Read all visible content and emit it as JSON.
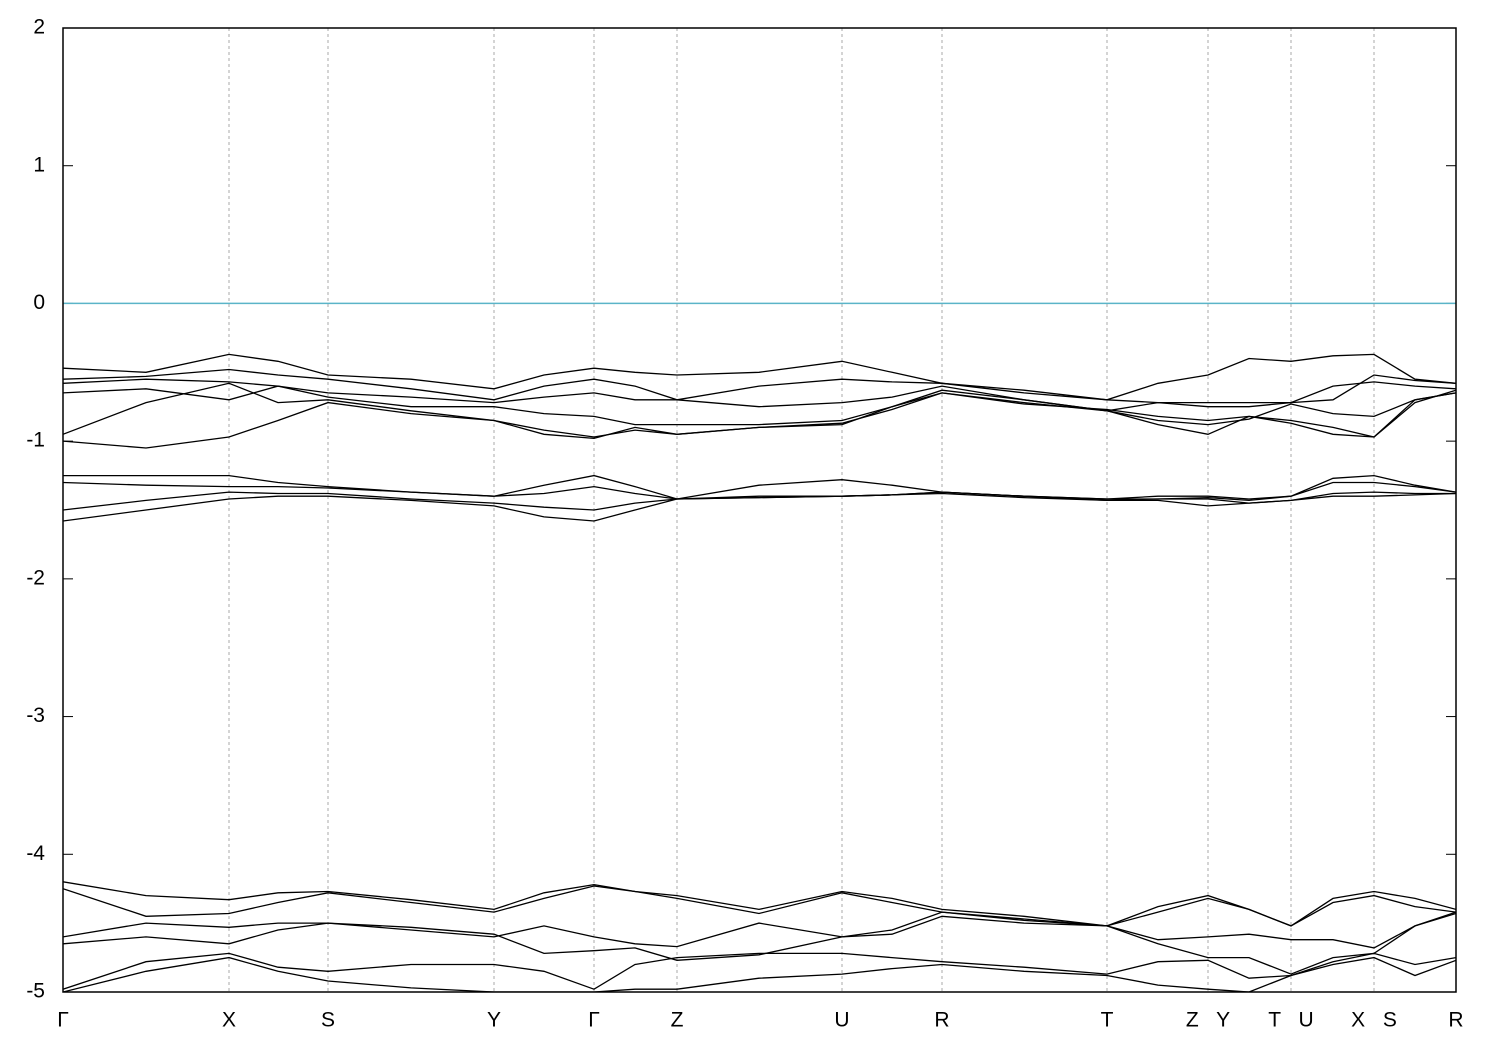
{
  "chart_data": {
    "type": "line",
    "x": [
      0,
      0.83,
      1.66,
      2.15,
      2.65,
      3.48,
      4.31,
      4.81,
      5.31,
      5.72,
      6.14,
      6.96,
      7.79,
      8.29,
      8.79,
      9.61,
      10.44,
      10.95,
      11.45,
      11.86,
      12.28,
      12.7,
      13.11,
      13.52,
      13.93
    ],
    "xlim": [
      0,
      13.93
    ],
    "xticks": [
      {
        "value": 0,
        "label": "Γ"
      },
      {
        "value": 1.66,
        "label": "X"
      },
      {
        "value": 2.65,
        "label": "S"
      },
      {
        "value": 4.31,
        "label": "Y"
      },
      {
        "value": 5.31,
        "label": "Γ"
      },
      {
        "value": 6.14,
        "label": "Z"
      },
      {
        "value": 7.79,
        "label": "U"
      },
      {
        "value": 8.79,
        "label": "R"
      },
      {
        "value": 10.44,
        "label": "T"
      },
      {
        "value": 11.45,
        "label": "Z Y"
      },
      {
        "value": 12.28,
        "label": "T U"
      },
      {
        "value": 13.11,
        "label": "X S"
      },
      {
        "value": 13.93,
        "label": "R"
      }
    ],
    "ylim": [
      -5,
      2
    ],
    "yticks": [
      -5,
      -4,
      -3,
      -2,
      -1,
      0,
      1,
      2
    ],
    "vertical_grid": true,
    "fermi_level": 0,
    "fermi_color": "#5ab4c8",
    "series": [
      {
        "color": "#000000",
        "values": [
          -0.47,
          -0.5,
          -0.37,
          -0.42,
          -0.52,
          -0.55,
          -0.62,
          -0.52,
          -0.47,
          -0.5,
          -0.52,
          -0.5,
          -0.42,
          -0.5,
          -0.58,
          -0.63,
          -0.7,
          -0.58,
          -0.52,
          -0.4,
          -0.42,
          -0.38,
          -0.37,
          -0.55,
          -0.58
        ]
      },
      {
        "color": "#000000",
        "values": [
          -0.55,
          -0.53,
          -0.48,
          -0.52,
          -0.55,
          -0.62,
          -0.7,
          -0.6,
          -0.55,
          -0.6,
          -0.7,
          -0.6,
          -0.55,
          -0.57,
          -0.58,
          -0.65,
          -0.7,
          -0.72,
          -0.72,
          -0.72,
          -0.72,
          -0.6,
          -0.57,
          -0.6,
          -0.62
        ]
      },
      {
        "color": "#000000",
        "values": [
          -0.58,
          -0.55,
          -0.57,
          -0.6,
          -0.65,
          -0.68,
          -0.72,
          -0.68,
          -0.65,
          -0.7,
          -0.7,
          -0.75,
          -0.72,
          -0.68,
          -0.6,
          -0.7,
          -0.78,
          -0.72,
          -0.75,
          -0.75,
          -0.72,
          -0.7,
          -0.52,
          -0.56,
          -0.58
        ]
      },
      {
        "color": "#000000",
        "values": [
          -0.65,
          -0.62,
          -0.7,
          -0.6,
          -0.68,
          -0.75,
          -0.75,
          -0.8,
          -0.82,
          -0.88,
          -0.88,
          -0.88,
          -0.85,
          -0.75,
          -0.65,
          -0.72,
          -0.78,
          -0.85,
          -0.88,
          -0.84,
          -0.73,
          -0.8,
          -0.82,
          -0.7,
          -0.65
        ]
      },
      {
        "color": "#000000",
        "values": [
          -0.95,
          -0.72,
          -0.58,
          -0.72,
          -0.7,
          -0.78,
          -0.85,
          -0.92,
          -0.97,
          -0.92,
          -0.95,
          -0.9,
          -0.88,
          -0.75,
          -0.63,
          -0.7,
          -0.78,
          -0.88,
          -0.95,
          -0.82,
          -0.85,
          -0.9,
          -0.97,
          -0.72,
          -0.63
        ]
      },
      {
        "color": "#000000",
        "values": [
          -1.0,
          -1.05,
          -0.97,
          -0.85,
          -0.72,
          -0.8,
          -0.85,
          -0.95,
          -0.98,
          -0.9,
          -0.95,
          -0.9,
          -0.87,
          -0.77,
          -0.65,
          -0.73,
          -0.77,
          -0.82,
          -0.85,
          -0.82,
          -0.87,
          -0.95,
          -0.97,
          -0.7,
          -0.65
        ]
      },
      {
        "color": "#000000",
        "values": [
          -1.25,
          -1.25,
          -1.25,
          -1.3,
          -1.33,
          -1.37,
          -1.4,
          -1.32,
          -1.25,
          -1.33,
          -1.42,
          -1.32,
          -1.28,
          -1.32,
          -1.37,
          -1.4,
          -1.42,
          -1.4,
          -1.4,
          -1.42,
          -1.4,
          -1.27,
          -1.25,
          -1.32,
          -1.37
        ]
      },
      {
        "color": "#000000",
        "values": [
          -1.3,
          -1.32,
          -1.33,
          -1.33,
          -1.34,
          -1.37,
          -1.4,
          -1.38,
          -1.33,
          -1.38,
          -1.42,
          -1.4,
          -1.4,
          -1.39,
          -1.37,
          -1.4,
          -1.42,
          -1.42,
          -1.41,
          -1.43,
          -1.4,
          -1.3,
          -1.3,
          -1.33,
          -1.37
        ]
      },
      {
        "color": "#000000",
        "values": [
          -1.5,
          -1.43,
          -1.37,
          -1.38,
          -1.38,
          -1.42,
          -1.45,
          -1.48,
          -1.5,
          -1.45,
          -1.42,
          -1.41,
          -1.4,
          -1.39,
          -1.37,
          -1.4,
          -1.43,
          -1.42,
          -1.42,
          -1.45,
          -1.43,
          -1.38,
          -1.37,
          -1.38,
          -1.38
        ]
      },
      {
        "color": "#000000",
        "values": [
          -1.58,
          -1.5,
          -1.42,
          -1.4,
          -1.4,
          -1.43,
          -1.47,
          -1.55,
          -1.58,
          -1.5,
          -1.42,
          -1.41,
          -1.4,
          -1.39,
          -1.38,
          -1.41,
          -1.43,
          -1.43,
          -1.47,
          -1.45,
          -1.43,
          -1.4,
          -1.4,
          -1.39,
          -1.38
        ]
      },
      {
        "color": "#000000",
        "values": [
          -4.2,
          -4.3,
          -4.33,
          -4.28,
          -4.27,
          -4.33,
          -4.4,
          -4.28,
          -4.22,
          -4.27,
          -4.3,
          -4.4,
          -4.27,
          -4.32,
          -4.4,
          -4.45,
          -4.52,
          -4.38,
          -4.3,
          -4.4,
          -4.52,
          -4.32,
          -4.27,
          -4.32,
          -4.4
        ]
      },
      {
        "color": "#000000",
        "values": [
          -4.25,
          -4.45,
          -4.43,
          -4.35,
          -4.28,
          -4.35,
          -4.42,
          -4.32,
          -4.23,
          -4.27,
          -4.32,
          -4.43,
          -4.28,
          -4.35,
          -4.42,
          -4.47,
          -4.52,
          -4.42,
          -4.32,
          -4.4,
          -4.52,
          -4.35,
          -4.3,
          -4.38,
          -4.42
        ]
      },
      {
        "color": "#000000",
        "values": [
          -4.6,
          -4.5,
          -4.53,
          -4.5,
          -4.5,
          -4.55,
          -4.6,
          -4.52,
          -4.6,
          -4.65,
          -4.67,
          -4.5,
          -4.6,
          -4.55,
          -4.42,
          -4.48,
          -4.52,
          -4.62,
          -4.6,
          -4.58,
          -4.62,
          -4.62,
          -4.68,
          -4.52,
          -4.42
        ]
      },
      {
        "color": "#000000",
        "values": [
          -4.65,
          -4.6,
          -4.65,
          -4.55,
          -4.5,
          -4.53,
          -4.58,
          -4.72,
          -4.7,
          -4.68,
          -4.77,
          -4.73,
          -4.6,
          -4.58,
          -4.45,
          -4.5,
          -4.52,
          -4.65,
          -4.75,
          -4.75,
          -4.87,
          -4.75,
          -4.72,
          -4.52,
          -4.43
        ]
      },
      {
        "color": "#000000",
        "values": [
          -4.98,
          -4.78,
          -4.72,
          -4.82,
          -4.85,
          -4.8,
          -4.8,
          -4.85,
          -4.98,
          -4.8,
          -4.75,
          -4.72,
          -4.72,
          -4.75,
          -4.78,
          -4.82,
          -4.87,
          -4.78,
          -4.77,
          -4.9,
          -4.88,
          -4.78,
          -4.72,
          -4.8,
          -4.75
        ]
      },
      {
        "color": "#000000",
        "values": [
          -5.0,
          -4.85,
          -4.75,
          -4.85,
          -4.92,
          -4.97,
          -5.0,
          -5.0,
          -5.0,
          -4.98,
          -4.98,
          -4.9,
          -4.87,
          -4.83,
          -4.8,
          -4.85,
          -4.88,
          -4.95,
          -4.98,
          -5.0,
          -4.88,
          -4.8,
          -4.75,
          -4.88,
          -4.77
        ]
      }
    ]
  }
}
